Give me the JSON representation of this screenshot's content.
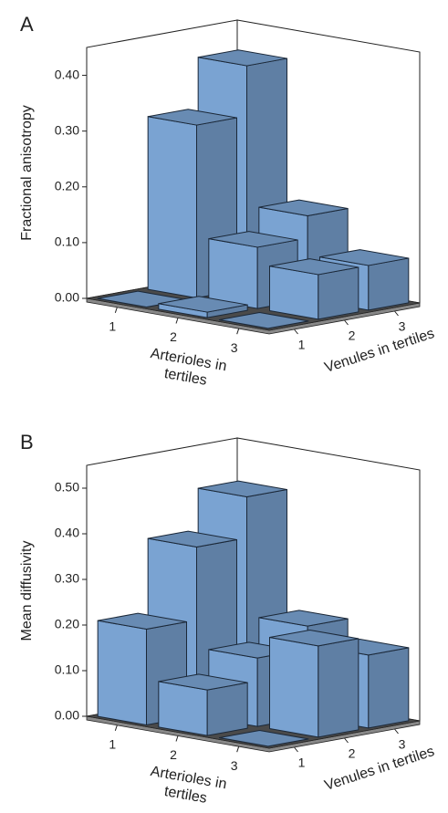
{
  "chart_data": [
    {
      "type": "bar3d",
      "panel": "A",
      "y_label": "Fractional anisotropy",
      "x_label": "Arterioles in tertiles",
      "z_label": "Venules in tertiles",
      "categories": [
        "1",
        "2",
        "3"
      ],
      "z_categories": [
        "1",
        "2",
        "3"
      ],
      "values": [
        [
          0,
          0.31,
          0.4
        ],
        [
          0.01,
          0.11,
          0.15
        ],
        [
          0,
          0.08,
          0.08
        ]
      ],
      "color": "#7aa3d2",
      "ylim": [
        0,
        0.45
      ],
      "yticks": [
        {
          "value": 0,
          "label": "0.00"
        },
        {
          "value": 0.1,
          "label": "0.10"
        },
        {
          "value": 0.2,
          "label": "0.20"
        },
        {
          "value": 0.3,
          "label": "0.30"
        },
        {
          "value": 0.4,
          "label": "0.40"
        }
      ]
    },
    {
      "type": "bar3d",
      "panel": "B",
      "y_label": "Mean diffusivity",
      "x_label": "Arterioles in tertiles",
      "z_label": "Venules in tertiles",
      "categories": [
        "1",
        "2",
        "3"
      ],
      "z_categories": [
        "1",
        "2",
        "3"
      ],
      "values": [
        [
          0.21,
          0.37,
          0.46
        ],
        [
          0.1,
          0.15,
          0.2
        ],
        [
          0,
          0.2,
          0.16
        ]
      ],
      "color": "#7aa3d2",
      "ylim": [
        0,
        0.55
      ],
      "yticks": [
        {
          "value": 0,
          "label": "0.00"
        },
        {
          "value": 0.1,
          "label": "0.10"
        },
        {
          "value": 0.2,
          "label": "0.20"
        },
        {
          "value": 0.3,
          "label": "0.30"
        },
        {
          "value": 0.4,
          "label": "0.40"
        },
        {
          "value": 0.5,
          "label": "0.50"
        }
      ]
    }
  ]
}
